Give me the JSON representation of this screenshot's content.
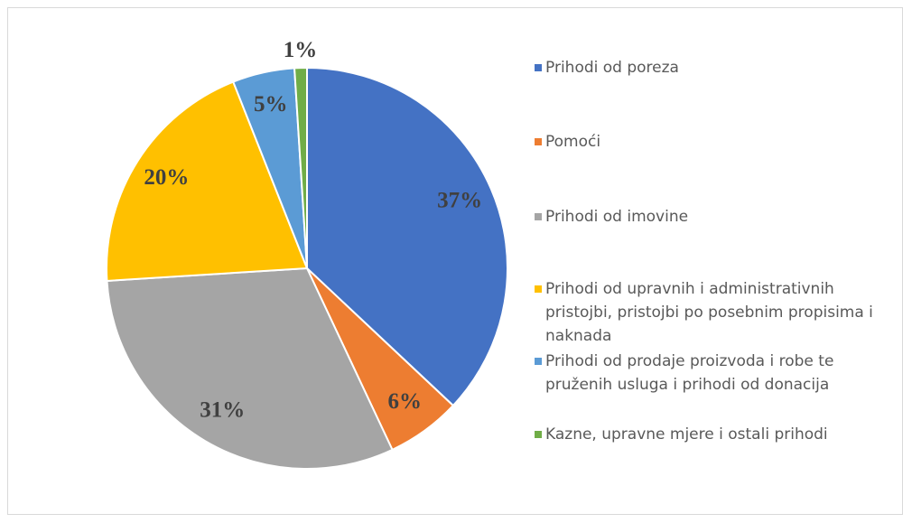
{
  "chart_data": {
    "type": "pie",
    "categories": [
      "Prihodi od poreza",
      "Pomoći",
      "Prihodi od imovine",
      "Prihodi od upravnih i administrativnih pristojbi, pristojbi po posebnim propisima i naknada",
      "Prihodi od prodaje proizvoda i robe te pruženih usluga i prihodi od donacija",
      "Kazne, upravne mjere i ostali prihodi"
    ],
    "values": [
      37,
      6,
      31,
      20,
      5,
      1
    ],
    "value_labels": [
      "37%",
      "6%",
      "31%",
      "20%",
      "5%",
      "1%"
    ],
    "colors": [
      "#4472c4",
      "#ed7d31",
      "#a5a5a5",
      "#ffc000",
      "#5b9bd5",
      "#70ad47"
    ],
    "legend": "right"
  }
}
